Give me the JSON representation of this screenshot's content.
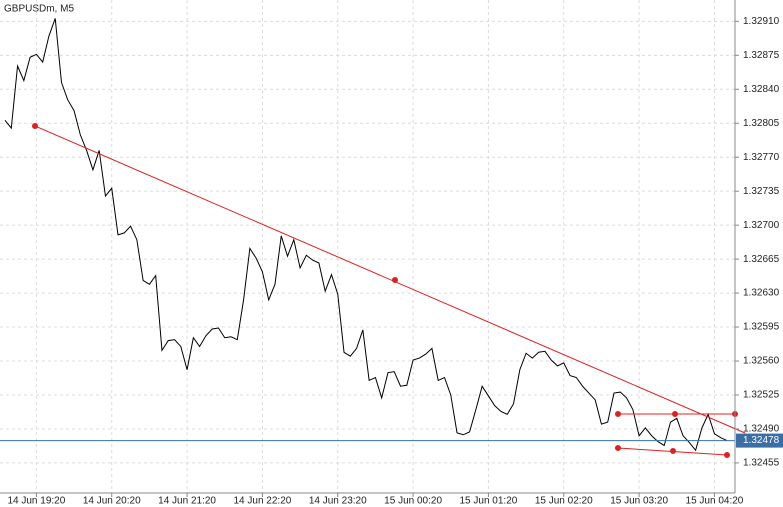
{
  "chart_data": {
    "type": "line",
    "title": "GBPUSDm, M5",
    "categories": [
      null,
      null,
      null,
      null,
      null,
      "14 Jun 19:20",
      null,
      null,
      null,
      null,
      null,
      null,
      null,
      null,
      null,
      null,
      null,
      "14 Jun 20:20",
      null,
      null,
      null,
      null,
      null,
      null,
      null,
      null,
      null,
      null,
      null,
      "14 Jun 21:20",
      null,
      null,
      null,
      null,
      null,
      null,
      null,
      null,
      null,
      null,
      null,
      "14 Jun 22:20",
      null,
      null,
      null,
      null,
      null,
      null,
      null,
      null,
      null,
      null,
      null,
      "14 Jun 23:20",
      null,
      null,
      null,
      null,
      null,
      null,
      null,
      null,
      null,
      null,
      null,
      "15 Jun 00:20",
      null,
      null,
      null,
      null,
      null,
      null,
      null,
      null,
      null,
      null,
      null,
      "15 Jun 01:20",
      null,
      null,
      null,
      null,
      null,
      null,
      null,
      null,
      null,
      null,
      null,
      "15 Jun 02:20",
      null,
      null,
      null,
      null,
      null,
      null,
      null,
      null,
      null,
      null,
      null,
      "15 Jun 03:20",
      null,
      null,
      null,
      null,
      null,
      null,
      null,
      null,
      null,
      null,
      null,
      "15 Jun 04:20",
      null,
      null
    ],
    "series": [
      {
        "name": "GBPUSDm",
        "color": "#000000",
        "values": [
          1.32808,
          1.328,
          1.32864,
          1.32849,
          1.32873,
          1.32876,
          1.32868,
          1.32895,
          1.32913,
          1.32847,
          1.32829,
          1.32818,
          1.32793,
          1.32777,
          1.32757,
          1.32777,
          1.3273,
          1.32738,
          1.3269,
          1.32692,
          1.32699,
          1.32685,
          1.32643,
          1.32639,
          1.32648,
          1.32571,
          1.32581,
          1.32582,
          1.32575,
          1.32551,
          1.32584,
          1.32575,
          1.32586,
          1.32593,
          1.32594,
          1.32584,
          1.32585,
          1.32582,
          1.32623,
          1.32676,
          1.32666,
          1.32652,
          1.32623,
          1.32639,
          1.32689,
          1.32668,
          1.32685,
          1.32656,
          1.32669,
          1.32664,
          1.32661,
          1.32632,
          1.32649,
          1.32629,
          1.32569,
          1.32565,
          1.32573,
          1.32592,
          1.3254,
          1.32543,
          1.32522,
          1.32548,
          1.32549,
          1.32534,
          1.32535,
          1.32561,
          1.32563,
          1.32567,
          1.32573,
          1.3254,
          1.32543,
          1.32525,
          1.32486,
          1.32484,
          1.32487,
          1.3251,
          1.32534,
          1.32524,
          1.32514,
          1.32508,
          1.32505,
          1.32516,
          1.32551,
          1.32568,
          1.32563,
          1.32569,
          1.3257,
          1.32561,
          1.32555,
          1.32558,
          1.32545,
          1.32543,
          1.32534,
          1.32527,
          1.3252,
          1.32495,
          1.32497,
          1.32527,
          1.32528,
          1.32522,
          1.3251,
          1.32483,
          1.32491,
          1.32483,
          1.32477,
          1.32473,
          1.32497,
          1.32501,
          1.32483,
          1.32476,
          1.32468,
          1.32491,
          1.32505,
          1.32485,
          1.32481,
          1.32478
        ]
      }
    ],
    "ylim": [
      1.32424,
      1.32932
    ],
    "yticks": [
      {
        "value": 1.3291,
        "label": "1.32910"
      },
      1.32875,
      {
        "value": 1.3284,
        "label": "1.32840"
      },
      1.32805,
      {
        "value": 1.3277,
        "label": "1.32770"
      },
      1.32735,
      {
        "value": 1.327,
        "label": "1.32700"
      },
      1.32665,
      {
        "value": 1.3263,
        "label": "1.32630"
      },
      1.32595,
      {
        "value": 1.3256,
        "label": "1.32560"
      },
      1.32525,
      {
        "value": 1.3249,
        "label": "1.32490"
      },
      1.32455
    ],
    "current_price": 1.32478,
    "current_price_color": "#3a6ea5",
    "grid": true
  }
}
